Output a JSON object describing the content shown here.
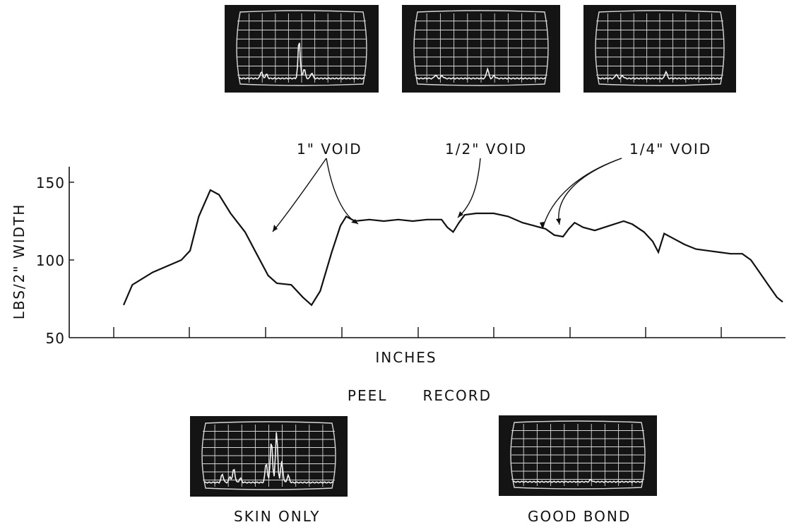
{
  "chart_data": {
    "type": "line",
    "ylabel": "LBS/2\" WIDTH",
    "xlabel": "INCHES",
    "title": "PEEL      RECORD",
    "ylim": [
      50,
      150
    ],
    "yticks": [
      "50",
      "100",
      "150"
    ],
    "grid": false,
    "series": [
      {
        "values_description": "peel force trace",
        "y_points": [
          [
            0.0,
            71
          ],
          [
            0.3,
            84
          ],
          [
            1.0,
            92
          ],
          [
            2.0,
            100
          ],
          [
            2.3,
            106
          ],
          [
            2.6,
            128
          ],
          [
            3.0,
            145
          ],
          [
            3.3,
            142
          ],
          [
            3.7,
            130
          ],
          [
            4.2,
            118
          ],
          [
            4.6,
            104
          ],
          [
            5.0,
            90
          ],
          [
            5.3,
            85
          ],
          [
            5.8,
            84
          ],
          [
            6.2,
            76
          ],
          [
            6.5,
            71
          ],
          [
            6.8,
            80
          ],
          [
            7.2,
            105
          ],
          [
            7.5,
            122
          ],
          [
            7.7,
            128
          ],
          [
            8.0,
            125
          ],
          [
            8.5,
            126
          ],
          [
            9.0,
            125
          ],
          [
            9.5,
            126
          ],
          [
            10.0,
            125
          ],
          [
            10.5,
            126
          ],
          [
            11.0,
            126
          ],
          [
            11.2,
            121
          ],
          [
            11.4,
            118
          ],
          [
            11.6,
            124
          ],
          [
            11.8,
            129
          ],
          [
            12.2,
            130
          ],
          [
            12.8,
            130
          ],
          [
            13.3,
            128
          ],
          [
            13.8,
            124
          ],
          [
            14.2,
            122
          ],
          [
            14.6,
            120
          ],
          [
            14.9,
            116
          ],
          [
            15.2,
            115
          ],
          [
            15.4,
            120
          ],
          [
            15.6,
            124
          ],
          [
            15.9,
            121
          ],
          [
            16.3,
            119
          ],
          [
            16.8,
            122
          ],
          [
            17.3,
            125
          ],
          [
            17.6,
            123
          ],
          [
            18.0,
            118
          ],
          [
            18.3,
            112
          ],
          [
            18.5,
            105
          ],
          [
            18.7,
            117
          ],
          [
            19.0,
            114
          ],
          [
            19.4,
            110
          ],
          [
            19.8,
            107
          ],
          [
            20.2,
            106
          ],
          [
            20.6,
            105
          ],
          [
            21.0,
            104
          ],
          [
            21.4,
            104
          ],
          [
            21.7,
            100
          ],
          [
            22.0,
            92
          ],
          [
            22.3,
            84
          ],
          [
            22.6,
            76
          ],
          [
            22.8,
            73
          ]
        ]
      }
    ],
    "annotations": [
      "1\" VOID",
      "1/2\" VOID",
      "1/4\" VOID"
    ]
  },
  "captions": {
    "left": "SKIN ONLY",
    "right": "GOOD BOND"
  },
  "colors": {
    "ink": "#111111",
    "scope_bg": "#141414",
    "scope_grid": "#d8d8d8",
    "scope_trace": "#f4f4f4"
  }
}
